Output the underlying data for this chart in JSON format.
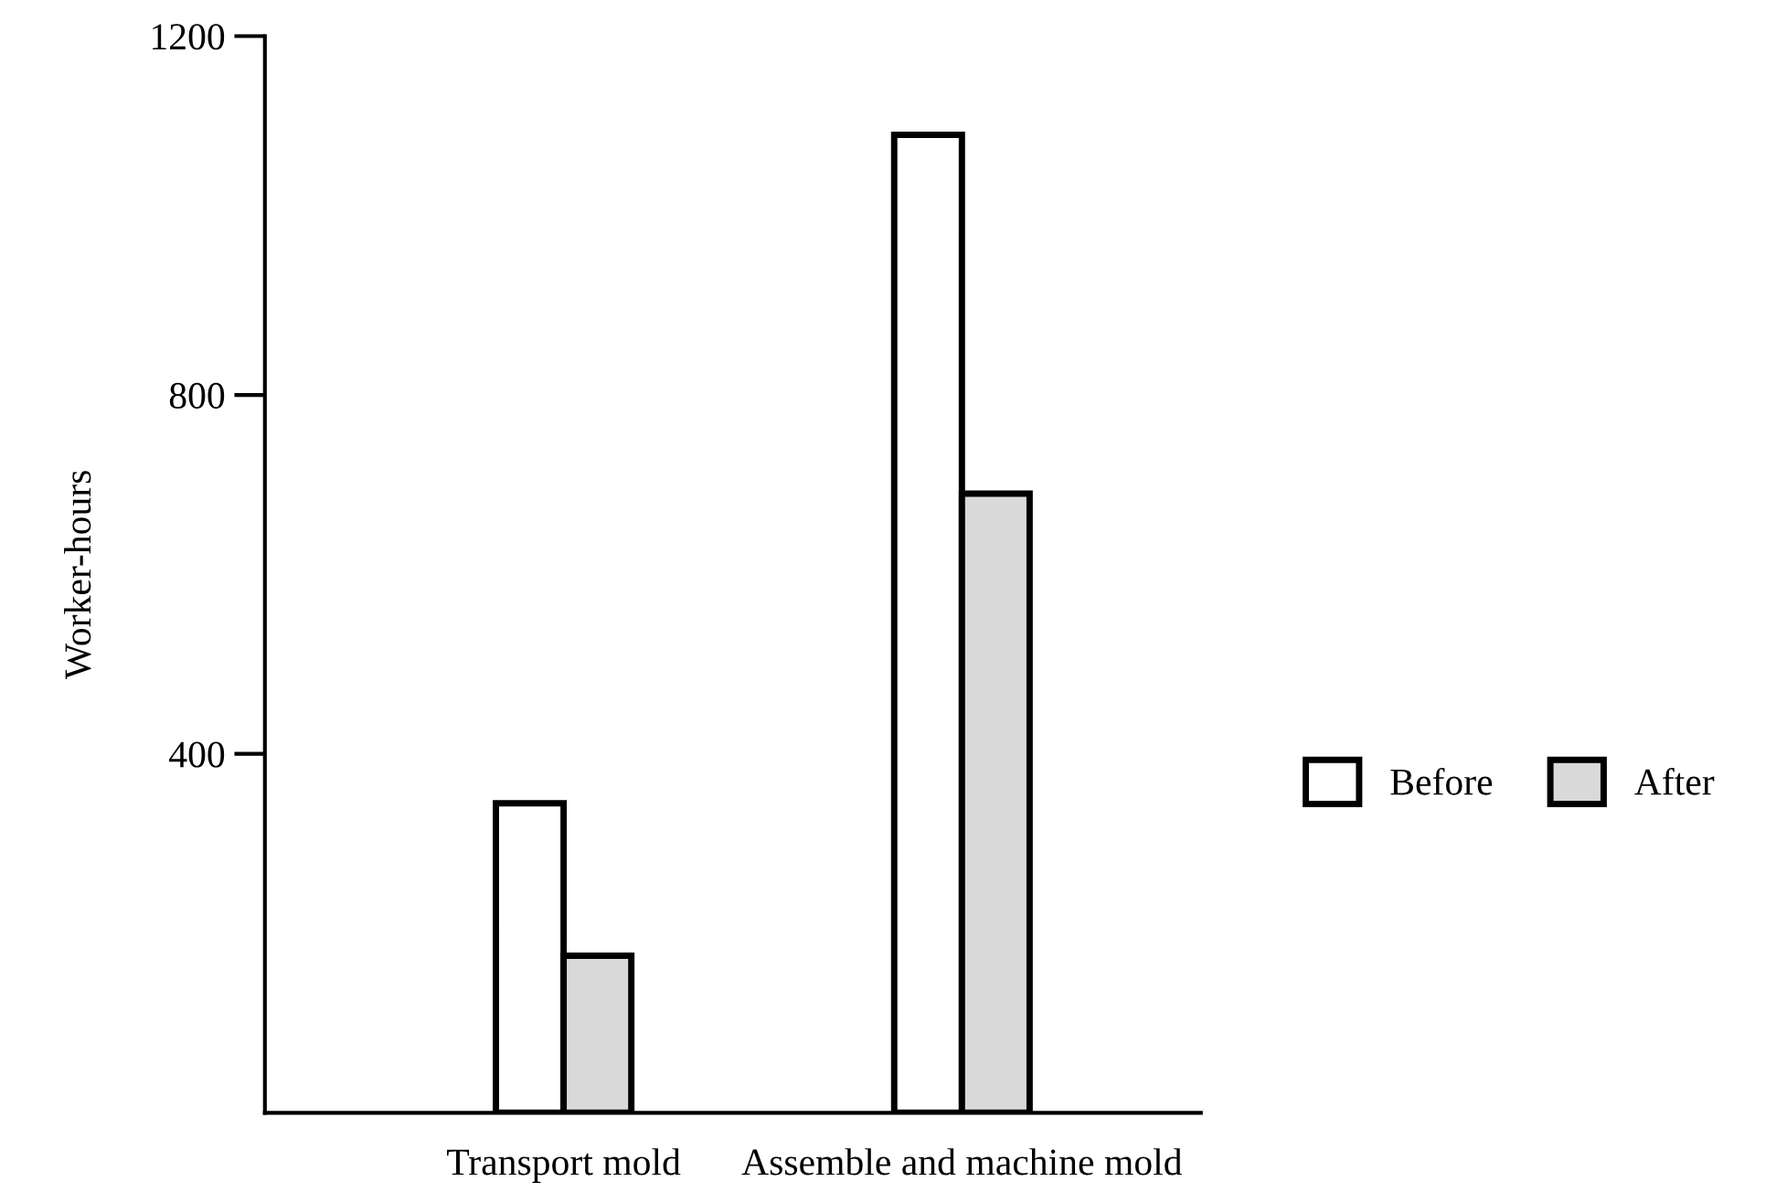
{
  "chart_data": {
    "type": "bar",
    "ylabel": "Worker-hours",
    "categories": [
      "Transport mold",
      "Assemble and machine mold"
    ],
    "series": [
      {
        "name": "Before",
        "color": "#ffffff",
        "values": [
          345,
          1090
        ]
      },
      {
        "name": "After",
        "color": "#d9d9d9",
        "values": [
          175,
          690
        ]
      }
    ],
    "ylim": [
      0,
      1200
    ],
    "yticks": [
      400,
      800,
      1200
    ],
    "grid": false,
    "legend": "right"
  }
}
